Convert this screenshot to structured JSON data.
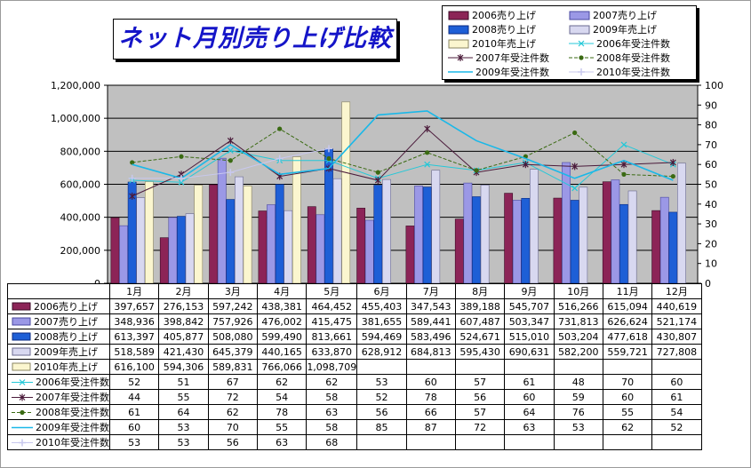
{
  "title": "ネット月別売り上げ比較",
  "colors": {
    "s2006": "#8c2457",
    "s2007": "#9b98e6",
    "s2008": "#1e5fd6",
    "s2009": "#d8d8f0",
    "s2010": "#fbf6cf",
    "o2006": "#24c8d8",
    "o2007": "#4a1a3a",
    "o2008": "#3a6a12",
    "o2009": "#1ab8e8",
    "o2010": "#c8c8ee",
    "plot_bg": "#c0c0c0"
  },
  "chart_data": {
    "type": "bar",
    "categories": [
      "1月",
      "2月",
      "3月",
      "4月",
      "5月",
      "6月",
      "7月",
      "8月",
      "9月",
      "10月",
      "11月",
      "12月"
    ],
    "left_axis": {
      "min": 0,
      "max": 1200000,
      "step": 200000,
      "ticks": [
        "0",
        "200,000",
        "400,000",
        "600,000",
        "800,000",
        "1,000,000",
        "1,200,000"
      ]
    },
    "right_axis": {
      "min": 0,
      "max": 100,
      "step": 10,
      "ticks": [
        "0",
        "10",
        "20",
        "30",
        "40",
        "50",
        "60",
        "70",
        "80",
        "90",
        "100"
      ]
    },
    "bar_series": [
      {
        "name": "2006売り上げ",
        "values": [
          397657,
          276153,
          597242,
          438381,
          464452,
          455403,
          347543,
          389188,
          545707,
          516266,
          615094,
          440619
        ],
        "labels": [
          "397,657",
          "276,153",
          "597,242",
          "438,381",
          "464,452",
          "455,403",
          "347,543",
          "389,188",
          "545,707",
          "516,266",
          "615,094",
          "440,619"
        ]
      },
      {
        "name": "2007売り上げ",
        "values": [
          348936,
          398842,
          757926,
          476002,
          415475,
          381655,
          589441,
          607487,
          503347,
          731813,
          626624,
          521174
        ],
        "labels": [
          "348,936",
          "398,842",
          "757,926",
          "476,002",
          "415,475",
          "381,655",
          "589,441",
          "607,487",
          "503,347",
          "731,813",
          "626,624",
          "521,174"
        ]
      },
      {
        "name": "2008売り上げ",
        "values": [
          613397,
          405877,
          508080,
          599490,
          813661,
          594469,
          583496,
          524671,
          515010,
          503204,
          477618,
          430807
        ],
        "labels": [
          "613,397",
          "405,877",
          "508,080",
          "599,490",
          "813,661",
          "594,469",
          "583,496",
          "524,671",
          "515,010",
          "503,204",
          "477,618",
          "430,807"
        ]
      },
      {
        "name": "2009年売上げ",
        "values": [
          518589,
          421430,
          645379,
          440165,
          633870,
          628912,
          684813,
          595430,
          690631,
          582200,
          559721,
          727808
        ],
        "labels": [
          "518,589",
          "421,430",
          "645,379",
          "440,165",
          "633,870",
          "628,912",
          "684,813",
          "595,430",
          "690,631",
          "582,200",
          "559,721",
          "727,808"
        ]
      },
      {
        "name": "2010年売上げ",
        "values": [
          616100,
          594306,
          589831,
          766066,
          1098709,
          null,
          null,
          null,
          null,
          null,
          null,
          null
        ],
        "labels": [
          "616,100",
          "594,306",
          "589,831",
          "766,066",
          "1,098,709",
          "",
          "",
          "",
          "",
          "",
          "",
          ""
        ]
      }
    ],
    "line_series": [
      {
        "name": "2006年受注件数",
        "values": [
          52,
          51,
          67,
          62,
          62,
          53,
          60,
          57,
          61,
          48,
          70,
          60
        ],
        "labels": [
          "52",
          "51",
          "67",
          "62",
          "62",
          "53",
          "60",
          "57",
          "61",
          "48",
          "70",
          "60"
        ]
      },
      {
        "name": "2007年受注件数",
        "values": [
          44,
          55,
          72,
          54,
          58,
          52,
          78,
          56,
          60,
          59,
          60,
          61
        ],
        "labels": [
          "44",
          "55",
          "72",
          "54",
          "58",
          "52",
          "78",
          "56",
          "60",
          "59",
          "60",
          "61"
        ]
      },
      {
        "name": "2008年受注件数",
        "values": [
          61,
          64,
          62,
          78,
          63,
          56,
          66,
          57,
          64,
          76,
          55,
          54
        ],
        "labels": [
          "61",
          "64",
          "62",
          "78",
          "63",
          "56",
          "66",
          "57",
          "64",
          "76",
          "55",
          "54"
        ]
      },
      {
        "name": "2009年受注件数",
        "values": [
          60,
          53,
          70,
          55,
          58,
          85,
          87,
          72,
          63,
          53,
          62,
          52
        ],
        "labels": [
          "60",
          "53",
          "70",
          "55",
          "58",
          "85",
          "87",
          "72",
          "63",
          "53",
          "62",
          "52"
        ]
      },
      {
        "name": "2010年受注件数",
        "values": [
          53,
          53,
          56,
          63,
          68,
          null,
          null,
          null,
          null,
          null,
          null,
          null
        ],
        "labels": [
          "53",
          "53",
          "56",
          "63",
          "68",
          "",
          "",
          "",
          "",
          "",
          "",
          ""
        ]
      }
    ],
    "legend_position": "top-right",
    "grid": true
  }
}
